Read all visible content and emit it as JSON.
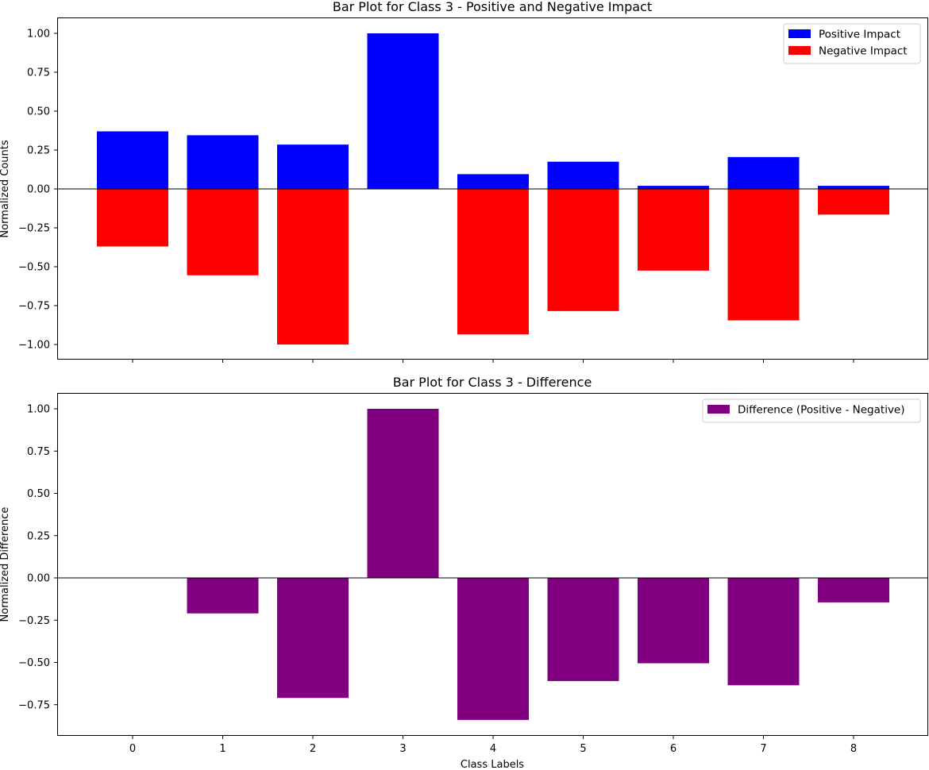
{
  "chart_data": [
    {
      "type": "bar",
      "title": "Bar Plot for Class 3 - Positive and Negative Impact",
      "xlabel": "",
      "ylabel": "Normalized Counts",
      "categories": [
        "0",
        "1",
        "2",
        "3",
        "4",
        "5",
        "6",
        "7",
        "8"
      ],
      "ylim": [
        -1.1,
        1.1
      ],
      "yticks": [
        "1.00",
        "0.75",
        "0.50",
        "0.25",
        "0.00",
        "−0.25",
        "−0.50",
        "−0.75",
        "−1.00"
      ],
      "ytick_values": [
        1.0,
        0.75,
        0.5,
        0.25,
        0.0,
        -0.25,
        -0.5,
        -0.75,
        -1.0
      ],
      "show_xtick_labels": false,
      "legend_position": "top-right",
      "series": [
        {
          "name": "Positive Impact",
          "color": "#0000ff",
          "values": [
            0.37,
            0.345,
            0.285,
            1.0,
            0.095,
            0.175,
            0.02,
            0.205,
            0.02
          ]
        },
        {
          "name": "Negative Impact",
          "color": "#ff0000",
          "values": [
            -0.37,
            -0.555,
            -1.0,
            0.0,
            -0.935,
            -0.785,
            -0.525,
            -0.845,
            -0.165
          ]
        }
      ]
    },
    {
      "type": "bar",
      "title": "Bar Plot for Class 3 - Difference",
      "xlabel": "Class Labels",
      "ylabel": "Normalized Difference",
      "categories": [
        "0",
        "1",
        "2",
        "3",
        "4",
        "5",
        "6",
        "7",
        "8"
      ],
      "ylim": [
        -0.93,
        1.08
      ],
      "yticks": [
        "1.00",
        "0.75",
        "0.50",
        "0.25",
        "0.00",
        "−0.25",
        "−0.50",
        "−0.75"
      ],
      "ytick_values": [
        1.0,
        0.75,
        0.5,
        0.25,
        0.0,
        -0.25,
        -0.5,
        -0.75
      ],
      "show_xtick_labels": true,
      "legend_position": "top-right",
      "series": [
        {
          "name": "Difference (Positive - Negative)",
          "color": "#800080",
          "values": [
            0.0,
            -0.21,
            -0.71,
            1.0,
            -0.84,
            -0.61,
            -0.505,
            -0.635,
            -0.145
          ]
        }
      ]
    }
  ]
}
